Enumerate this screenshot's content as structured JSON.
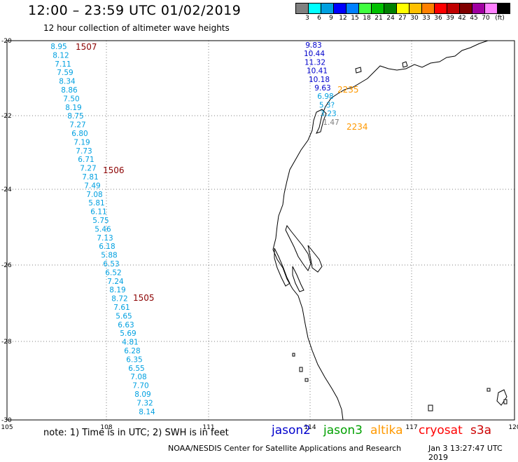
{
  "header": {
    "title": "12:00 – 23:59 UTC 01/02/2019",
    "subtitle": "12 hour collection of altimeter wave heights"
  },
  "color_scale": {
    "unit": "(ft)",
    "labels": [
      "3",
      "6",
      "9",
      "12",
      "15",
      "18",
      "21",
      "24",
      "27",
      "30",
      "33",
      "36",
      "39",
      "42",
      "45",
      "70"
    ],
    "colors": [
      "#808080",
      "#00ffff",
      "#00a0e0",
      "#0000ff",
      "#0080ff",
      "#40ff40",
      "#00c000",
      "#008000",
      "#ffff00",
      "#ffc000",
      "#ff8000",
      "#ff0000",
      "#c00000",
      "#800000",
      "#a000a0",
      "#ff80ff",
      "#000000"
    ]
  },
  "map": {
    "lon_ticks": [
      "105",
      "108",
      "111",
      "114",
      "117",
      "120"
    ],
    "lat_ticks": [
      "-20",
      "-22",
      "-24",
      "-26",
      "-28",
      "-30"
    ],
    "track_labels": [
      {
        "text": "1507",
        "color": "#8b0000"
      },
      {
        "text": "1506",
        "color": "#8b0000"
      },
      {
        "text": "1505",
        "color": "#8b0000"
      },
      {
        "text": "2235",
        "color": "#ff9900"
      },
      {
        "text": "2234",
        "color": "#ff9900"
      }
    ],
    "west_track_color": "#00a0e0",
    "west_track": [
      "8.95",
      "8.12",
      "7.11",
      "7.59",
      "8.34",
      "8.86",
      "7.50",
      "8.19",
      "8.75",
      "7.27",
      "6.80",
      "7.19",
      "7.73",
      "6.71",
      "7.27",
      "7.81",
      "7.49",
      "7.08",
      "5.81",
      "6.11",
      "5.75",
      "5.46",
      "7.13",
      "6.18",
      "5.88",
      "6.53",
      "6.52",
      "7.24",
      "8.19",
      "8.72",
      "7.61",
      "5.65",
      "6.63",
      "5.69",
      "4.81",
      "6.28",
      "6.35",
      "6.55",
      "7.08",
      "7.70",
      "8.09",
      "7.32",
      "8.14"
    ],
    "east_track": [
      {
        "v": "9.83",
        "c": "#0000cc"
      },
      {
        "v": "10.44",
        "c": "#0000cc"
      },
      {
        "v": "11.32",
        "c": "#0000cc"
      },
      {
        "v": "10.41",
        "c": "#0000cc"
      },
      {
        "v": "10.18",
        "c": "#0000cc"
      },
      {
        "v": "9.63",
        "c": "#0000cc"
      },
      {
        "v": "6.98",
        "c": "#00a0e0"
      },
      {
        "v": "5.3?",
        "c": "#00a0e0"
      },
      {
        "v": "3.23",
        "c": "#00a0e0"
      },
      {
        "v": "1.47",
        "c": "#808080"
      }
    ]
  },
  "note": "note:  1) Time is in UTC;  2) SWH is in feet",
  "legend": [
    {
      "name": "jason2",
      "color": "#0000cc"
    },
    {
      "name": "jason3",
      "color": "#00a000"
    },
    {
      "name": "altika",
      "color": "#ff9900"
    },
    {
      "name": "cryosat",
      "color": "#ff0000"
    },
    {
      "name": "s3a",
      "color": "#cc0000"
    }
  ],
  "footer": "NOAA/NESDIS Center for Satellite Applications and Research",
  "timestamp": "Jan  3 13:27:47 UTC 2019"
}
